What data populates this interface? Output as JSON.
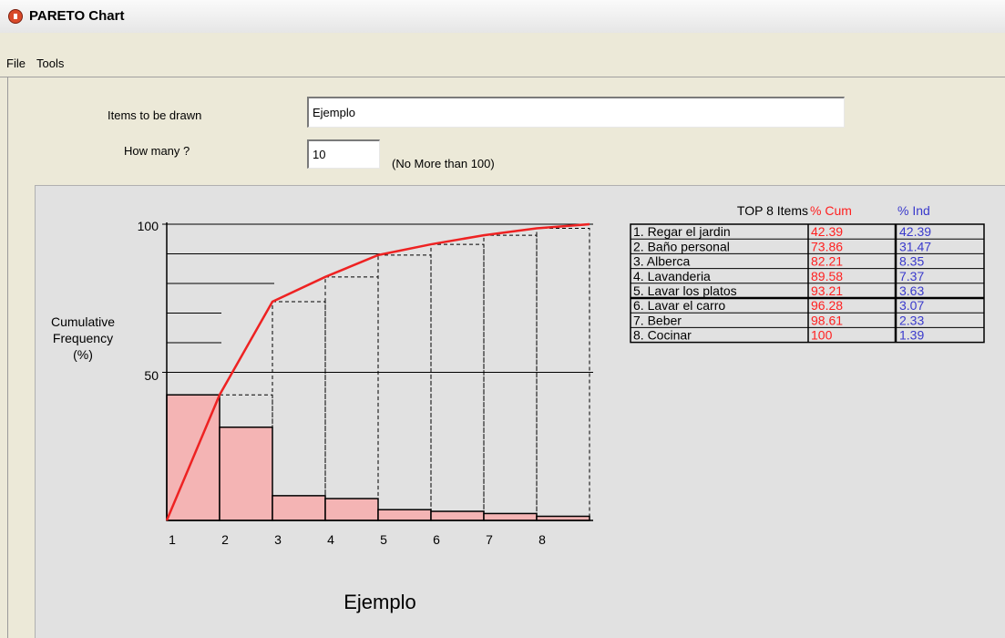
{
  "window": {
    "title": "PARETO Chart"
  },
  "menu": [
    {
      "label": "File"
    },
    {
      "label": "Tools"
    }
  ],
  "form": {
    "items_label": "Items to be drawn",
    "items_value": "Ejemplo",
    "howmany_label": "How many ?",
    "howmany_value": "10",
    "howmany_hint": "(No More than 100)"
  },
  "colors": {
    "bar_fill": "#f4b4b4",
    "cum_line": "#ee2222",
    "cum_text": "#ff2020",
    "ind_text": "#3a3acc"
  },
  "chart_data": {
    "type": "bar",
    "categories": [
      "1",
      "2",
      "3",
      "4",
      "5",
      "6",
      "7",
      "8"
    ],
    "series": [
      {
        "name": "% Ind",
        "values": [
          42.39,
          31.47,
          8.35,
          7.37,
          3.63,
          3.07,
          2.33,
          1.39
        ]
      },
      {
        "name": "% Cum",
        "values": [
          42.39,
          73.86,
          82.21,
          89.58,
          93.21,
          96.28,
          98.61,
          100
        ]
      }
    ],
    "ylabel": "Cumulative Frequency (%)",
    "xlabel": "Ejemplo",
    "ylim": [
      0,
      100
    ],
    "yticks": [
      "100",
      "50"
    ],
    "table": {
      "header": "TOP  8 Items",
      "cum_header": "% Cum",
      "ind_header": "% Ind",
      "rows": [
        {
          "name": "1. Regar el jardin",
          "cum": "42.39",
          "ind": "42.39"
        },
        {
          "name": "2. Baño personal",
          "cum": "73.86",
          "ind": "31.47"
        },
        {
          "name": "3. Alberca",
          "cum": "82.21",
          "ind": "8.35"
        },
        {
          "name": "4. Lavanderia",
          "cum": "89.58",
          "ind": "7.37"
        },
        {
          "name": "5. Lavar los platos",
          "cum": "93.21",
          "ind": "3.63"
        },
        {
          "name": "6. Lavar el carro",
          "cum": "96.28",
          "ind": "3.07"
        },
        {
          "name": "7. Beber",
          "cum": "98.61",
          "ind": "2.33"
        },
        {
          "name": "8. Cocinar",
          "cum": "100",
          "ind": "1.39"
        }
      ]
    }
  }
}
